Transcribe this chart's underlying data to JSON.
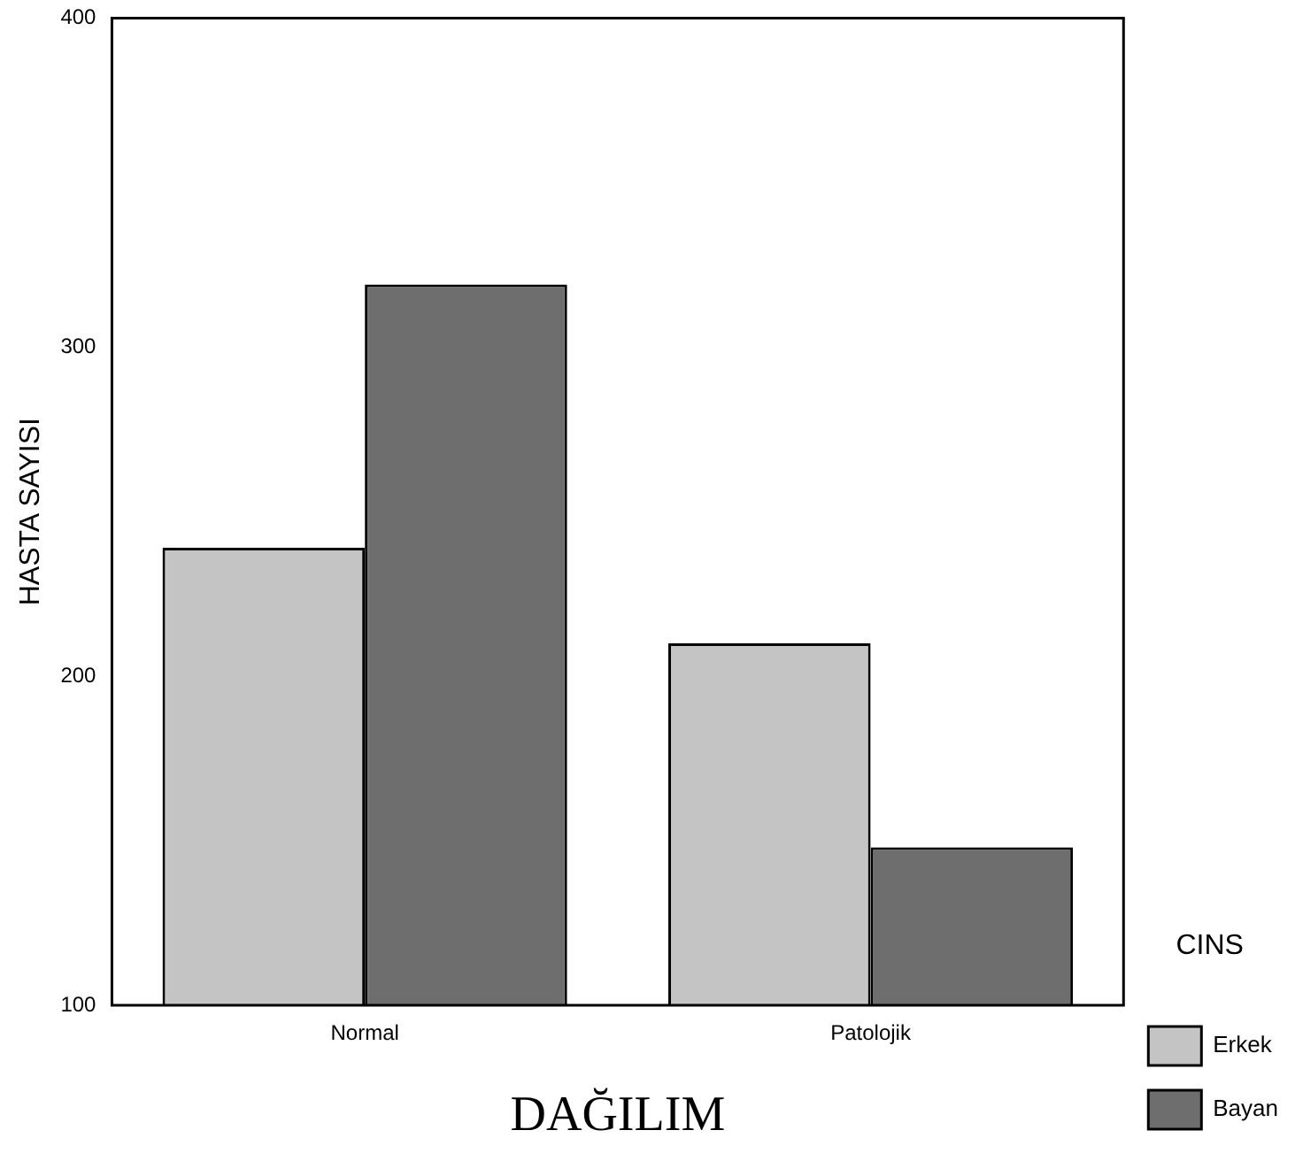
{
  "chart_data": {
    "type": "bar",
    "xlabel": "DAĞILIM",
    "ylabel": "HASTA SAYISI",
    "legend_title": "CINS",
    "legend": "right",
    "categories": [
      "Normal",
      "Patolojik"
    ],
    "series": [
      {
        "name": "Erkek",
        "color": "#c4c4c4",
        "values": [
          239,
          210
        ]
      },
      {
        "name": "Bayan",
        "color": "#6e6e6e",
        "values": [
          319,
          148
        ]
      }
    ],
    "ylim": [
      100,
      400
    ],
    "yticks": [
      100,
      200,
      300,
      400
    ],
    "grid": false
  }
}
